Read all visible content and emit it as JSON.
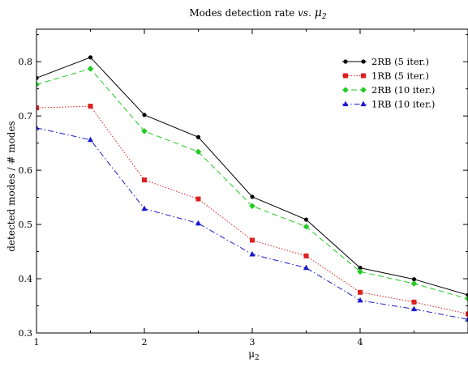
{
  "chart_data": {
    "type": "line",
    "title_main": "Modes detection rate ",
    "title_vs": "vs.",
    "title_mu": "μ",
    "title_mu_sub": "2",
    "xlabel": "μ",
    "xlabel_sub": "2",
    "ylabel": "detected modes / # modes",
    "xlim": [
      1,
      5
    ],
    "ylim": [
      0.3,
      0.86
    ],
    "x_ticks": [
      1,
      2,
      3,
      4
    ],
    "x_tick_labels": [
      "1",
      "2",
      "3",
      "4"
    ],
    "y_ticks": [
      0.3,
      0.4,
      0.5,
      0.6,
      0.7,
      0.8
    ],
    "y_tick_labels": [
      "0.3",
      "0.4",
      "0.5",
      "0.6",
      "0.7",
      "0.8"
    ],
    "grid": false,
    "legend_position": "top-right",
    "x": [
      1,
      1.5,
      2,
      2.5,
      3,
      3.5,
      4,
      4.5,
      5
    ],
    "series": [
      {
        "name": "2RB (5 iter.)",
        "color": "#000000",
        "marker": "circle",
        "dash": "solid",
        "values": [
          0.77,
          0.808,
          0.702,
          0.661,
          0.551,
          0.509,
          0.42,
          0.399,
          0.37
        ]
      },
      {
        "name": "1RB (5 iter.)",
        "color": "#dd2020",
        "marker": "square",
        "dash": "dotted",
        "values": [
          0.715,
          0.718,
          0.582,
          0.547,
          0.471,
          0.442,
          0.375,
          0.357,
          0.335
        ]
      },
      {
        "name": "2RB (10 iter.)",
        "color": "#22cc22",
        "marker": "diamond",
        "dash": "dashed",
        "values": [
          0.758,
          0.787,
          0.672,
          0.634,
          0.534,
          0.496,
          0.413,
          0.391,
          0.363
        ]
      },
      {
        "name": "1RB (10 iter.)",
        "color": "#1a1acc",
        "marker": "triangle",
        "dash": "dashdot",
        "values": [
          0.678,
          0.656,
          0.529,
          0.502,
          0.445,
          0.42,
          0.36,
          0.344,
          0.325
        ]
      }
    ]
  }
}
